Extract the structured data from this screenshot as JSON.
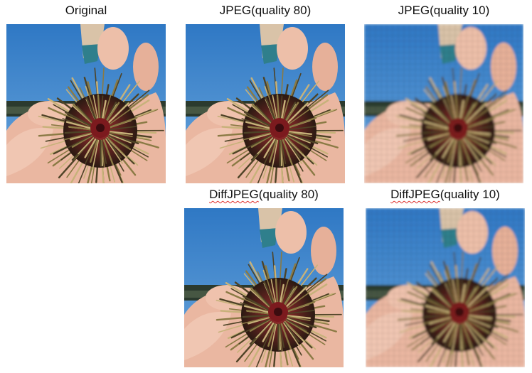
{
  "panels": [
    {
      "id": "original",
      "caption": "Original",
      "watermark": "© ~~~ ~~~"
    },
    {
      "id": "jpeg80",
      "caption": "JPEG(quality 80)",
      "watermark": "© ~~~ ~~~"
    },
    {
      "id": "jpeg10",
      "caption": "JPEG(quality 10)",
      "watermark": "© ~~~ ~~~"
    },
    {
      "id": "diffjpeg80",
      "caption_prefix": "DiffJPEG",
      "caption_suffix": "(quality 80)",
      "watermark": "© ~~~ ~~~"
    },
    {
      "id": "diffjpeg10",
      "caption_prefix": "DiffJPEG",
      "caption_suffix": "(quality 10)",
      "watermark": "© ~~~ ~~~"
    }
  ],
  "colors": {
    "sky": "#3f86c8",
    "ground": "#2b3a2e",
    "skin": "#eab7a1",
    "urchin": "#5c1f1c",
    "spine": "#8a7a44",
    "shirt": "#2f7f8c"
  }
}
